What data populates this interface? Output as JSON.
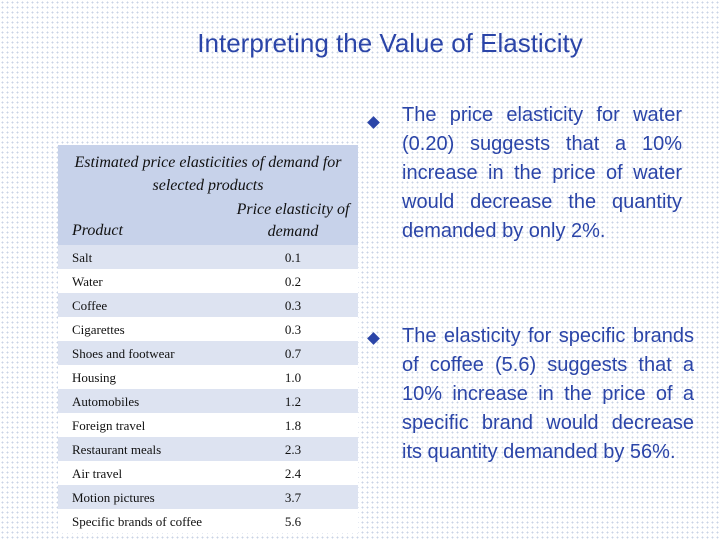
{
  "title": "Interpreting the Value of Elasticity",
  "table": {
    "caption": "Estimated price elasticities of demand for selected products",
    "col_product": "Product",
    "col_elasticity": "Price elasticity of demand",
    "rows": [
      {
        "product": "Salt",
        "value": "0.1"
      },
      {
        "product": "Water",
        "value": "0.2"
      },
      {
        "product": "Coffee",
        "value": "0.3"
      },
      {
        "product": "Cigarettes",
        "value": "0.3"
      },
      {
        "product": "Shoes and footwear",
        "value": "0.7"
      },
      {
        "product": "Housing",
        "value": "1.0"
      },
      {
        "product": "Automobiles",
        "value": "1.2"
      },
      {
        "product": "Foreign travel",
        "value": "1.8"
      },
      {
        "product": "Restaurant meals",
        "value": "2.3"
      },
      {
        "product": "Air travel",
        "value": "2.4"
      },
      {
        "product": "Motion pictures",
        "value": "3.7"
      },
      {
        "product": "Specific brands of coffee",
        "value": "5.6"
      }
    ]
  },
  "bullets": [
    {
      "text": "The price elasticity for water (0.20) suggests that a 10% increase in the price of water would decrease the quantity demanded by only 2%."
    },
    {
      "text": "The elasticity for specific brands of coffee (5.6) suggests that a 10% increase in the price of a specific brand would decrease its quantity demanded by 56%."
    }
  ],
  "colors": {
    "accent": "#2b45a8",
    "table_header": "#c7d2ea",
    "row_shade": "#dde3f1"
  },
  "icons": {
    "bullet": "diamond-bullet-icon"
  }
}
